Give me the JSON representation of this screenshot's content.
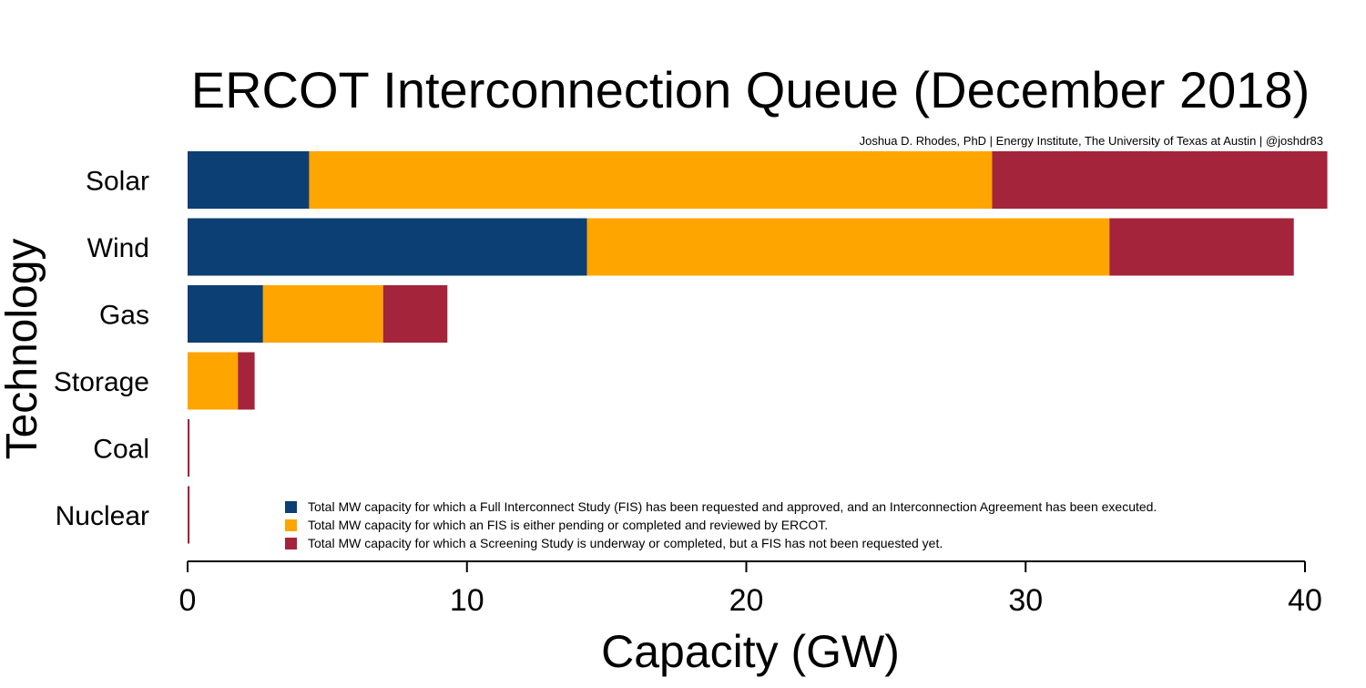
{
  "chart_data": {
    "type": "bar",
    "orientation": "horizontal",
    "stacked": true,
    "title": "ERCOT Interconnection Queue (December 2018)",
    "subtitle": "Joshua D. Rhodes, PhD | Energy Institute, The University of Texas at Austin | @joshdr83",
    "xlabel": "Capacity (GW)",
    "ylabel": "Technology",
    "categories": [
      "Solar",
      "Wind",
      "Gas",
      "Storage",
      "Coal",
      "Nuclear"
    ],
    "series": [
      {
        "name": "Total MW capacity for which a Full Interconnect Study (FIS) has been requested and approved, and an Interconnection Agreement has been executed.",
        "color": "#0c3f73",
        "values": [
          4.35,
          14.3,
          2.7,
          0.0,
          0.0,
          0.0
        ]
      },
      {
        "name": "Total MW capacity for which an FIS is either pending or completed and reviewed by ERCOT.",
        "color": "#fea500",
        "values": [
          24.45,
          18.7,
          4.3,
          1.8,
          0.0,
          0.0
        ]
      },
      {
        "name": "Total MW capacity for which a Screening Study is underway or completed, but a FIS has not been requested yet.",
        "color": "#a4243b",
        "values": [
          12.0,
          6.6,
          2.3,
          0.6,
          0.07,
          0.07
        ]
      }
    ],
    "xlim": [
      0,
      40.8
    ],
    "xticks": [
      0,
      10,
      20,
      30,
      40
    ],
    "grid": false,
    "legend_position": "bottom-right"
  }
}
